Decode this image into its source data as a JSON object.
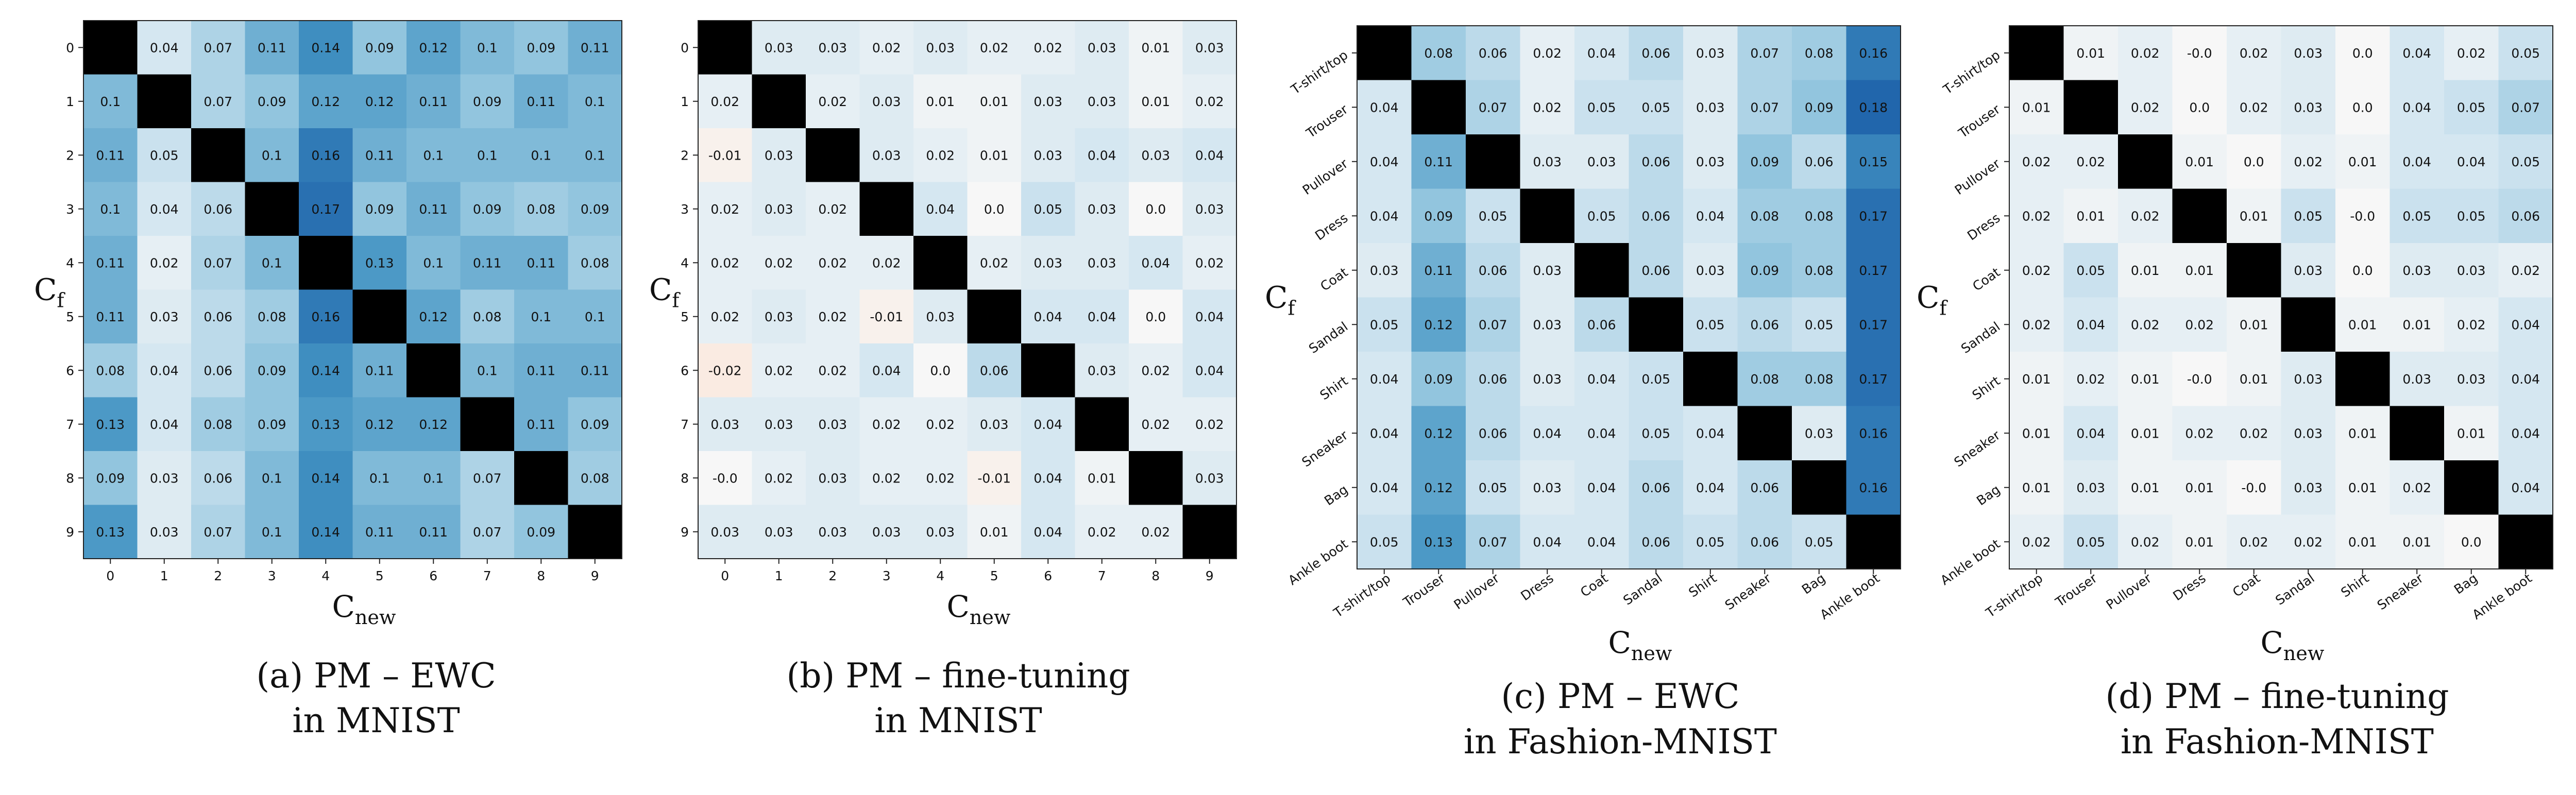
{
  "chart_data": [
    {
      "type": "heatmap",
      "caption_line1": "(a) PM – EWC",
      "caption_line2": "in MNIST",
      "ylabel": {
        "main": "C",
        "sub": "f"
      },
      "xlabel": {
        "main": "C",
        "sub": "new"
      },
      "row_labels": [
        "0",
        "1",
        "2",
        "3",
        "4",
        "5",
        "6",
        "7",
        "8",
        "9"
      ],
      "col_labels": [
        "0",
        "1",
        "2",
        "3",
        "4",
        "5",
        "6",
        "7",
        "8",
        "9"
      ],
      "values": [
        [
          null,
          0.04,
          0.07,
          0.11,
          0.14,
          0.09,
          0.12,
          0.1,
          0.09,
          0.11
        ],
        [
          0.1,
          null,
          0.07,
          0.09,
          0.12,
          0.12,
          0.11,
          0.09,
          0.11,
          0.1
        ],
        [
          0.11,
          0.05,
          null,
          0.1,
          0.16,
          0.11,
          0.1,
          0.1,
          0.1,
          0.1
        ],
        [
          0.1,
          0.04,
          0.06,
          null,
          0.17,
          0.09,
          0.11,
          0.09,
          0.08,
          0.09
        ],
        [
          0.11,
          0.02,
          0.07,
          0.1,
          null,
          0.13,
          0.1,
          0.11,
          0.11,
          0.08
        ],
        [
          0.11,
          0.03,
          0.06,
          0.08,
          0.16,
          null,
          0.12,
          0.08,
          0.1,
          0.1
        ],
        [
          0.08,
          0.04,
          0.06,
          0.09,
          0.14,
          0.11,
          null,
          0.1,
          0.11,
          0.11
        ],
        [
          0.13,
          0.04,
          0.08,
          0.09,
          0.13,
          0.12,
          0.12,
          null,
          0.11,
          0.09
        ],
        [
          0.09,
          0.03,
          0.06,
          0.1,
          0.14,
          0.1,
          0.1,
          0.07,
          null,
          0.08
        ],
        [
          0.13,
          0.03,
          0.07,
          0.1,
          0.14,
          0.11,
          0.11,
          0.07,
          0.09,
          null
        ]
      ],
      "color_range": [
        -0.18,
        0.18
      ],
      "diagonal_color": "#000000"
    },
    {
      "type": "heatmap",
      "caption_line1": "(b) PM – fine-tuning",
      "caption_line2": "in MNIST",
      "ylabel": {
        "main": "C",
        "sub": "f"
      },
      "xlabel": {
        "main": "C",
        "sub": "new"
      },
      "row_labels": [
        "0",
        "1",
        "2",
        "3",
        "4",
        "5",
        "6",
        "7",
        "8",
        "9"
      ],
      "col_labels": [
        "0",
        "1",
        "2",
        "3",
        "4",
        "5",
        "6",
        "7",
        "8",
        "9"
      ],
      "values": [
        [
          null,
          0.03,
          0.03,
          0.02,
          0.03,
          0.02,
          0.02,
          0.03,
          0.01,
          0.03
        ],
        [
          0.02,
          null,
          0.02,
          0.03,
          0.01,
          0.01,
          0.03,
          0.03,
          0.01,
          0.02
        ],
        [
          -0.01,
          0.03,
          null,
          0.03,
          0.02,
          0.01,
          0.03,
          0.04,
          0.03,
          0.04
        ],
        [
          0.02,
          0.03,
          0.02,
          null,
          0.04,
          0.0,
          0.05,
          0.03,
          0.0,
          0.03
        ],
        [
          0.02,
          0.02,
          0.02,
          0.02,
          null,
          0.02,
          0.03,
          0.03,
          0.04,
          0.02
        ],
        [
          0.02,
          0.03,
          0.02,
          -0.01,
          0.03,
          null,
          0.04,
          0.04,
          0.0,
          0.04
        ],
        [
          -0.02,
          0.02,
          0.02,
          0.04,
          0.0,
          0.06,
          null,
          0.03,
          0.02,
          0.04
        ],
        [
          0.03,
          0.03,
          0.03,
          0.02,
          0.02,
          0.03,
          0.04,
          null,
          0.02,
          0.02
        ],
        [
          -0.0,
          0.02,
          0.03,
          0.02,
          0.02,
          -0.01,
          0.04,
          0.01,
          null,
          0.03
        ],
        [
          0.03,
          0.03,
          0.03,
          0.03,
          0.03,
          0.01,
          0.04,
          0.02,
          0.02,
          null
        ]
      ],
      "value_labels": [
        [
          null,
          "0.03",
          "0.03",
          "0.02",
          "0.03",
          "0.02",
          "0.02",
          "0.03",
          "0.01",
          "0.03"
        ],
        [
          "0.02",
          null,
          "0.02",
          "0.03",
          "0.01",
          "0.01",
          "0.03",
          "0.03",
          "0.01",
          "0.02"
        ],
        [
          "-0.01",
          "0.03",
          null,
          "0.03",
          "0.02",
          "0.01",
          "0.03",
          "0.04",
          "0.03",
          "0.04"
        ],
        [
          "0.02",
          "0.03",
          "0.02",
          null,
          "0.04",
          "0.0",
          "0.05",
          "0.03",
          "0.0",
          "0.03"
        ],
        [
          "0.02",
          "0.02",
          "0.02",
          "0.02",
          null,
          "0.02",
          "0.03",
          "0.03",
          "0.04",
          "0.02"
        ],
        [
          "0.02",
          "0.03",
          "0.02",
          "-0.01",
          "0.03",
          null,
          "0.04",
          "0.04",
          "0.0",
          "0.04"
        ],
        [
          "-0.02",
          "0.02",
          "0.02",
          "0.04",
          "0.0",
          "0.06",
          null,
          "0.03",
          "0.02",
          "0.04"
        ],
        [
          "0.03",
          "0.03",
          "0.03",
          "0.02",
          "0.02",
          "0.03",
          "0.04",
          null,
          "0.02",
          "0.02"
        ],
        [
          "-0.0",
          "0.02",
          "0.03",
          "0.02",
          "0.02",
          "-0.01",
          "0.04",
          "0.01",
          null,
          "0.03"
        ],
        [
          "0.03",
          "0.03",
          "0.03",
          "0.03",
          "0.03",
          "0.01",
          "0.04",
          "0.02",
          "0.02",
          null
        ]
      ],
      "color_range": [
        -0.18,
        0.18
      ],
      "diagonal_color": "#000000"
    },
    {
      "type": "heatmap",
      "caption_line1": "(c) PM – EWC",
      "caption_line2": "in Fashion-MNIST",
      "ylabel": {
        "main": "C",
        "sub": "f"
      },
      "xlabel": {
        "main": "C",
        "sub": "new"
      },
      "row_labels": [
        "T-shirt/top",
        "Trouser",
        "Pullover",
        "Dress",
        "Coat",
        "Sandal",
        "Shirt",
        "Sneaker",
        "Bag",
        "Ankle boot"
      ],
      "col_labels": [
        "T-shirt/top",
        "Trouser",
        "Pullover",
        "Dress",
        "Coat",
        "Sandal",
        "Shirt",
        "Sneaker",
        "Bag",
        "Ankle boot"
      ],
      "values": [
        [
          null,
          0.08,
          0.06,
          0.02,
          0.04,
          0.06,
          0.03,
          0.07,
          0.08,
          0.16
        ],
        [
          0.04,
          null,
          0.07,
          0.02,
          0.05,
          0.05,
          0.03,
          0.07,
          0.09,
          0.18
        ],
        [
          0.04,
          0.11,
          null,
          0.03,
          0.03,
          0.06,
          0.03,
          0.09,
          0.06,
          0.15
        ],
        [
          0.04,
          0.09,
          0.05,
          null,
          0.05,
          0.06,
          0.04,
          0.08,
          0.08,
          0.17
        ],
        [
          0.03,
          0.11,
          0.06,
          0.03,
          null,
          0.06,
          0.03,
          0.09,
          0.08,
          0.17
        ],
        [
          0.05,
          0.12,
          0.07,
          0.03,
          0.06,
          null,
          0.05,
          0.06,
          0.05,
          0.17
        ],
        [
          0.04,
          0.09,
          0.06,
          0.03,
          0.04,
          0.05,
          null,
          0.08,
          0.08,
          0.17
        ],
        [
          0.04,
          0.12,
          0.06,
          0.04,
          0.04,
          0.05,
          0.04,
          null,
          0.03,
          0.16
        ],
        [
          0.04,
          0.12,
          0.05,
          0.03,
          0.04,
          0.06,
          0.04,
          0.06,
          null,
          0.16
        ],
        [
          0.05,
          0.13,
          0.07,
          0.04,
          0.04,
          0.06,
          0.05,
          0.06,
          0.05,
          null
        ]
      ],
      "color_range": [
        -0.18,
        0.18
      ],
      "diagonal_color": "#000000"
    },
    {
      "type": "heatmap",
      "caption_line1": "(d) PM – fine-tuning",
      "caption_line2": "in Fashion-MNIST",
      "ylabel": {
        "main": "C",
        "sub": "f"
      },
      "xlabel": {
        "main": "C",
        "sub": "new"
      },
      "row_labels": [
        "T-shirt/top",
        "Trouser",
        "Pullover",
        "Dress",
        "Coat",
        "Sandal",
        "Shirt",
        "Sneaker",
        "Bag",
        "Ankle boot"
      ],
      "col_labels": [
        "T-shirt/top",
        "Trouser",
        "Pullover",
        "Dress",
        "Coat",
        "Sandal",
        "Shirt",
        "Sneaker",
        "Bag",
        "Ankle boot"
      ],
      "values": [
        [
          null,
          0.01,
          0.02,
          -0.0,
          0.02,
          0.03,
          0.0,
          0.04,
          0.02,
          0.05
        ],
        [
          0.01,
          null,
          0.02,
          0.0,
          0.02,
          0.03,
          0.0,
          0.04,
          0.05,
          0.07
        ],
        [
          0.02,
          0.02,
          null,
          0.01,
          0.0,
          0.02,
          0.01,
          0.04,
          0.04,
          0.05
        ],
        [
          0.02,
          0.01,
          0.02,
          null,
          0.01,
          0.05,
          -0.0,
          0.05,
          0.05,
          0.06
        ],
        [
          0.02,
          0.05,
          0.01,
          0.01,
          null,
          0.03,
          0.0,
          0.03,
          0.03,
          0.02
        ],
        [
          0.02,
          0.04,
          0.02,
          0.02,
          0.01,
          null,
          0.01,
          0.01,
          0.02,
          0.04
        ],
        [
          0.01,
          0.02,
          0.01,
          -0.0,
          0.01,
          0.03,
          null,
          0.03,
          0.03,
          0.04
        ],
        [
          0.01,
          0.04,
          0.01,
          0.02,
          0.02,
          0.03,
          0.01,
          null,
          0.01,
          0.04
        ],
        [
          0.01,
          0.03,
          0.01,
          0.01,
          -0.0,
          0.03,
          0.01,
          0.02,
          null,
          0.04
        ],
        [
          0.02,
          0.05,
          0.02,
          0.01,
          0.02,
          0.02,
          0.01,
          0.01,
          0.0,
          null
        ]
      ],
      "value_labels": [
        [
          null,
          "0.01",
          "0.02",
          "-0.0",
          "0.02",
          "0.03",
          "0.0",
          "0.04",
          "0.02",
          "0.05"
        ],
        [
          "0.01",
          null,
          "0.02",
          "0.0",
          "0.02",
          "0.03",
          "0.0",
          "0.04",
          "0.05",
          "0.07"
        ],
        [
          "0.02",
          "0.02",
          null,
          "0.01",
          "0.0",
          "0.02",
          "0.01",
          "0.04",
          "0.04",
          "0.05"
        ],
        [
          "0.02",
          "0.01",
          "0.02",
          null,
          "0.01",
          "0.05",
          "-0.0",
          "0.05",
          "0.05",
          "0.06"
        ],
        [
          "0.02",
          "0.05",
          "0.01",
          "0.01",
          null,
          "0.03",
          "0.0",
          "0.03",
          "0.03",
          "0.02"
        ],
        [
          "0.02",
          "0.04",
          "0.02",
          "0.02",
          "0.01",
          null,
          "0.01",
          "0.01",
          "0.02",
          "0.04"
        ],
        [
          "0.01",
          "0.02",
          "0.01",
          "-0.0",
          "0.01",
          "0.03",
          null,
          "0.03",
          "0.03",
          "0.04"
        ],
        [
          "0.01",
          "0.04",
          "0.01",
          "0.02",
          "0.02",
          "0.03",
          "0.01",
          null,
          "0.01",
          "0.04"
        ],
        [
          "0.01",
          "0.03",
          "0.01",
          "0.01",
          "-0.0",
          "0.03",
          "0.01",
          "0.02",
          null,
          "0.04"
        ],
        [
          "0.02",
          "0.05",
          "0.02",
          "0.01",
          "0.02",
          "0.02",
          "0.01",
          "0.01",
          "0.0",
          null
        ]
      ],
      "color_range": [
        -0.18,
        0.18
      ],
      "diagonal_color": "#000000"
    }
  ]
}
